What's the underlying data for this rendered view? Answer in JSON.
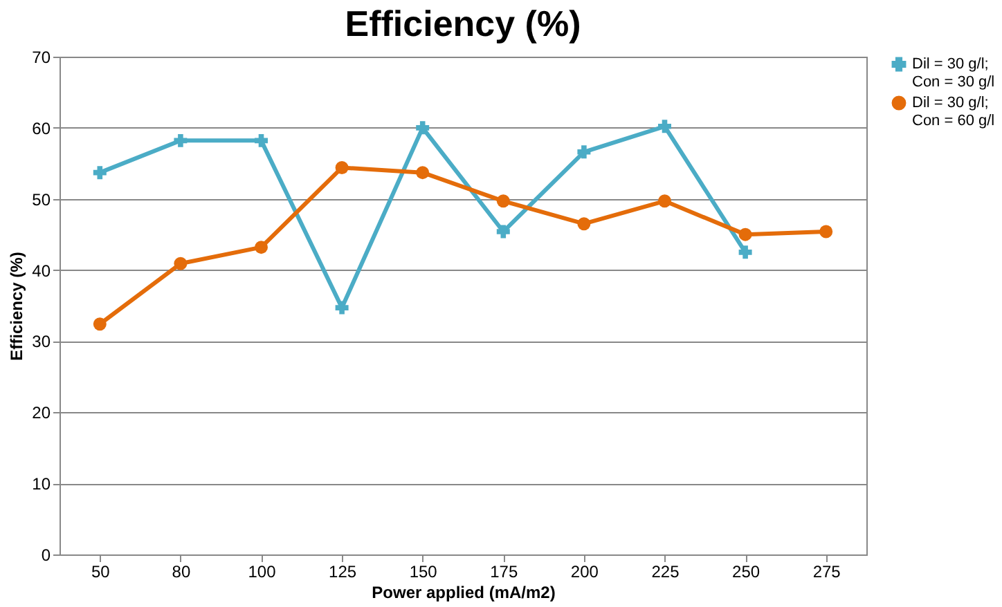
{
  "chart_data": {
    "type": "line",
    "title": "Efficiency (%)",
    "xlabel": "Power applied (mA/m2)",
    "ylabel": "Efficiency (%)",
    "categories": [
      "50",
      "80",
      "100",
      "125",
      "150",
      "175",
      "200",
      "225",
      "250",
      "275"
    ],
    "series": [
      {
        "name": "Dil = 30 g/l; Con = 30 g/l",
        "color": "#4bacc6",
        "marker": "cross",
        "values": [
          53.7,
          58.2,
          58.2,
          34.7,
          60,
          45.4,
          56.6,
          60.2,
          42.5,
          null
        ]
      },
      {
        "name": "Dil = 30 g/l; Con = 60 g/l",
        "color": "#e46c0a",
        "marker": "circle",
        "values": [
          32.4,
          40.9,
          43.2,
          54.4,
          53.7,
          49.7,
          46.5,
          49.7,
          45,
          45.4
        ]
      }
    ],
    "ylim": [
      0,
      70
    ],
    "yticks": [
      0,
      10,
      20,
      30,
      40,
      50,
      60,
      70
    ],
    "grid": "y",
    "legend": "right"
  }
}
